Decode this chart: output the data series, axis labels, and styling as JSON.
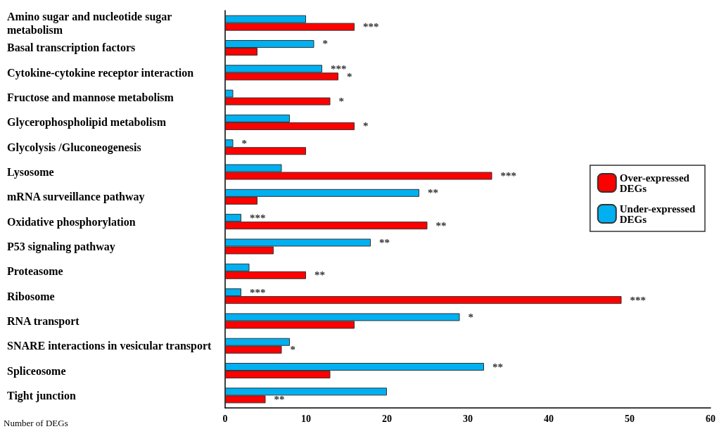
{
  "chart_data": {
    "type": "bar",
    "orientation": "horizontal",
    "xlabel": "Number of DEGs",
    "categories": [
      "Amino sugar and nucleotide sugar metabolism",
      "Basal transcription factors",
      "Cytokine-cytokine receptor interaction",
      "Fructose and mannose metabolism",
      "Glycerophospholipid metabolism",
      "Glycolysis /Gluconeogenesis",
      "Lysosome",
      "mRNA surveillance pathway",
      "Oxidative phosphorylation",
      "P53 signaling pathway",
      "Proteasome",
      "Ribosome",
      "RNA transport",
      "SNARE interactions in vesicular transport",
      "Spliceosome",
      "Tight junction"
    ],
    "series": [
      {
        "name": "Over-expressed DEGs",
        "color": "#ff0000",
        "values": [
          16,
          4,
          14,
          13,
          16,
          10,
          33,
          4,
          25,
          6,
          10,
          49,
          16,
          7,
          13,
          5
        ],
        "value_labels": [
          "***",
          null,
          "*",
          "*",
          "*",
          null,
          "***",
          null,
          "**",
          null,
          "**",
          "***",
          null,
          "*",
          null,
          "**"
        ]
      },
      {
        "name": "Under-expressed DEGs",
        "color": "#00b0f0",
        "values": [
          10,
          11,
          12,
          1,
          8,
          1,
          7,
          24,
          2,
          18,
          3,
          2,
          29,
          8,
          32,
          20
        ],
        "value_labels": [
          null,
          "*",
          "***",
          null,
          null,
          "*",
          null,
          "**",
          "***",
          "**",
          null,
          "***",
          "*",
          null,
          "**",
          null
        ]
      }
    ],
    "xlim": [
      0,
      60
    ],
    "xticks": [
      0,
      10,
      20,
      30,
      40,
      50,
      60
    ],
    "grid": false,
    "legend": "right"
  }
}
